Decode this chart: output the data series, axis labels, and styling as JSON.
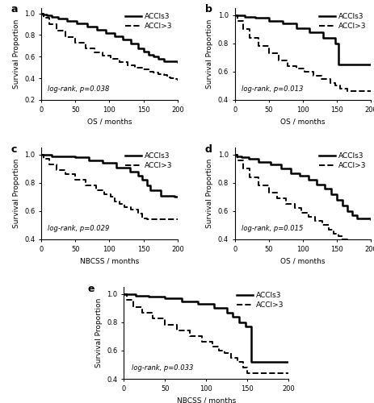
{
  "panels": [
    {
      "label": "a",
      "xlabel": "OS / months",
      "pvalue": "log-rank, p=0.038",
      "ylim": [
        0.2,
        1.05
      ],
      "xlim": [
        0,
        200
      ],
      "yticks": [
        0.2,
        0.4,
        0.6,
        0.8,
        1.0
      ],
      "solid": {
        "x": [
          0,
          2,
          8,
          15,
          25,
          38,
          52,
          68,
          82,
          95,
          108,
          120,
          132,
          142,
          150,
          158,
          165,
          172,
          180,
          200
        ],
        "y": [
          1.0,
          0.99,
          0.98,
          0.97,
          0.95,
          0.93,
          0.91,
          0.88,
          0.85,
          0.82,
          0.79,
          0.76,
          0.72,
          0.68,
          0.65,
          0.62,
          0.6,
          0.58,
          0.56,
          0.55
        ]
      },
      "dashed": {
        "x": [
          0,
          3,
          12,
          22,
          35,
          50,
          65,
          78,
          90,
          102,
          115,
          127,
          138,
          148,
          158,
          165,
          172,
          180,
          185,
          190,
          195,
          200
        ],
        "y": [
          1.0,
          0.96,
          0.9,
          0.84,
          0.78,
          0.73,
          0.68,
          0.64,
          0.61,
          0.58,
          0.55,
          0.52,
          0.5,
          0.48,
          0.46,
          0.45,
          0.44,
          0.43,
          0.41,
          0.4,
          0.39,
          0.38
        ]
      }
    },
    {
      "label": "b",
      "xlabel": "OS / months",
      "pvalue": "log-rank, p=0.013",
      "ylim": [
        0.4,
        1.05
      ],
      "xlim": [
        0,
        200
      ],
      "yticks": [
        0.4,
        0.6,
        0.8,
        1.0
      ],
      "solid": {
        "x": [
          0,
          5,
          15,
          30,
          50,
          70,
          90,
          110,
          130,
          148,
          152,
          160,
          200
        ],
        "y": [
          1.0,
          1.0,
          0.99,
          0.98,
          0.96,
          0.94,
          0.91,
          0.88,
          0.84,
          0.8,
          0.65,
          0.65,
          0.65
        ]
      },
      "dashed": {
        "x": [
          0,
          4,
          12,
          22,
          35,
          50,
          65,
          78,
          90,
          102,
          115,
          127,
          140,
          148,
          155,
          165,
          200
        ],
        "y": [
          1.0,
          0.96,
          0.9,
          0.84,
          0.78,
          0.73,
          0.68,
          0.64,
          0.62,
          0.6,
          0.57,
          0.55,
          0.52,
          0.5,
          0.48,
          0.46,
          0.46
        ]
      }
    },
    {
      "label": "c",
      "xlabel": "NBCSS / months",
      "pvalue": "log-rank, p=0.029",
      "ylim": [
        0.4,
        1.05
      ],
      "xlim": [
        0,
        200
      ],
      "yticks": [
        0.4,
        0.6,
        0.8,
        1.0
      ],
      "solid": {
        "x": [
          0,
          5,
          15,
          30,
          50,
          70,
          90,
          110,
          130,
          142,
          148,
          155,
          160,
          175,
          195,
          200
        ],
        "y": [
          1.0,
          1.0,
          0.99,
          0.99,
          0.98,
          0.96,
          0.94,
          0.91,
          0.88,
          0.85,
          0.82,
          0.78,
          0.75,
          0.71,
          0.7,
          0.7
        ]
      },
      "dashed": {
        "x": [
          0,
          4,
          12,
          22,
          35,
          50,
          65,
          80,
          92,
          102,
          108,
          115,
          122,
          132,
          142,
          148,
          155,
          200
        ],
        "y": [
          1.0,
          0.97,
          0.93,
          0.89,
          0.86,
          0.82,
          0.78,
          0.75,
          0.72,
          0.7,
          0.67,
          0.65,
          0.63,
          0.61,
          0.58,
          0.55,
          0.54,
          0.54
        ]
      }
    },
    {
      "label": "d",
      "xlabel": "OS / months",
      "pvalue": "log-rank, p=0.015",
      "ylim": [
        0.4,
        1.05
      ],
      "xlim": [
        0,
        200
      ],
      "yticks": [
        0.4,
        0.6,
        0.8,
        1.0
      ],
      "solid": {
        "x": [
          0,
          3,
          10,
          20,
          35,
          52,
          68,
          82,
          95,
          108,
          120,
          132,
          142,
          150,
          158,
          165,
          172,
          180,
          200
        ],
        "y": [
          1.0,
          0.99,
          0.98,
          0.97,
          0.95,
          0.93,
          0.9,
          0.87,
          0.85,
          0.82,
          0.79,
          0.76,
          0.72,
          0.68,
          0.64,
          0.6,
          0.57,
          0.55,
          0.54
        ]
      },
      "dashed": {
        "x": [
          0,
          4,
          12,
          22,
          35,
          50,
          62,
          75,
          88,
          98,
          108,
          118,
          128,
          138,
          145,
          152,
          158,
          165,
          200
        ],
        "y": [
          1.0,
          0.96,
          0.9,
          0.84,
          0.78,
          0.73,
          0.69,
          0.65,
          0.62,
          0.59,
          0.56,
          0.53,
          0.5,
          0.47,
          0.44,
          0.42,
          0.4,
          0.39,
          0.38
        ]
      }
    },
    {
      "label": "e",
      "xlabel": "NBCSS / months",
      "pvalue": "log-rank, p=0.033",
      "ylim": [
        0.4,
        1.05
      ],
      "xlim": [
        0,
        200
      ],
      "yticks": [
        0.4,
        0.6,
        0.8,
        1.0
      ],
      "solid": {
        "x": [
          0,
          5,
          15,
          30,
          50,
          70,
          90,
          110,
          125,
          132,
          140,
          148,
          155,
          200
        ],
        "y": [
          1.0,
          1.0,
          0.99,
          0.98,
          0.97,
          0.95,
          0.93,
          0.9,
          0.87,
          0.84,
          0.8,
          0.77,
          0.52,
          0.52
        ]
      },
      "dashed": {
        "x": [
          0,
          4,
          12,
          22,
          35,
          50,
          65,
          80,
          95,
          108,
          115,
          122,
          130,
          138,
          145,
          150,
          200
        ],
        "y": [
          1.0,
          0.96,
          0.91,
          0.87,
          0.83,
          0.78,
          0.74,
          0.7,
          0.66,
          0.63,
          0.6,
          0.58,
          0.55,
          0.52,
          0.48,
          0.44,
          0.44
        ]
      }
    }
  ],
  "legend_solid": "ACCIs3",
  "legend_dashed": "ACCI>3",
  "ylabel": "Survival Proportion",
  "solid_lw": 1.8,
  "dashed_lw": 1.4,
  "fontsize_label": 6.5,
  "fontsize_tick": 6,
  "fontsize_pval": 6,
  "fontsize_legend": 6.5,
  "fontsize_panel_label": 9
}
